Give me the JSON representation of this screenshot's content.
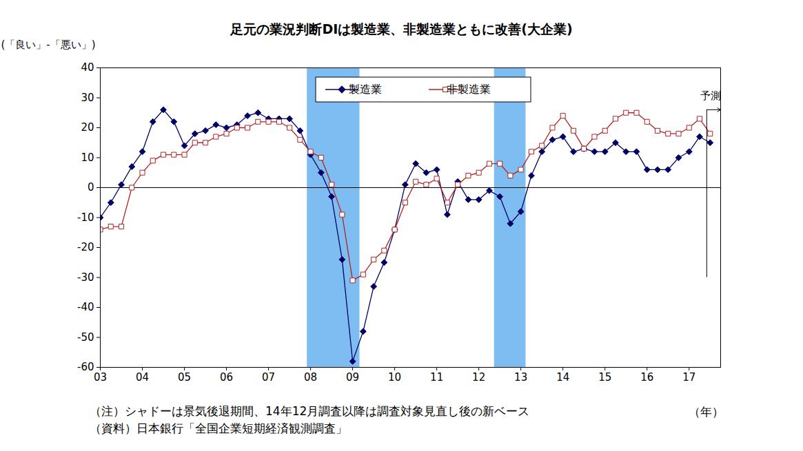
{
  "chart_data": {
    "type": "line",
    "title": "足元の業況判断DIは製造業、非製造業ともに改善(大企業)",
    "y_label": "(「良い」-「悪い」)",
    "x_label": "（年）",
    "notes": [
      "（注）シャドーは景気後退期間、14年12月調査以降は調査対象見直し後の新ベース",
      "（資料）日本銀行「全国企業短期経済観測調査」"
    ],
    "x": [
      2003,
      2003.25,
      2003.5,
      2003.75,
      2004,
      2004.25,
      2004.5,
      2004.75,
      2005,
      2005.25,
      2005.5,
      2005.75,
      2006,
      2006.25,
      2006.5,
      2006.75,
      2007,
      2007.25,
      2007.5,
      2007.75,
      2008,
      2008.25,
      2008.5,
      2008.75,
      2009,
      2009.25,
      2009.5,
      2009.75,
      2010,
      2010.25,
      2010.5,
      2010.75,
      2011,
      2011.25,
      2011.5,
      2011.75,
      2012,
      2012.25,
      2012.5,
      2012.75,
      2013,
      2013.25,
      2013.5,
      2013.75,
      2014,
      2014.25,
      2014.5,
      2014.75,
      2015,
      2015.25,
      2015.5,
      2015.75,
      2016,
      2016.25,
      2016.5,
      2016.75,
      2017,
      2017.25,
      2017.5
    ],
    "series": [
      {
        "name": "製造業",
        "color": "#000066",
        "marker": "diamond",
        "values": [
          -10,
          -5,
          1,
          7,
          12,
          22,
          26,
          22,
          14,
          18,
          19,
          21,
          20,
          21,
          24,
          25,
          23,
          23,
          23,
          19,
          11,
          5,
          -3,
          -24,
          -58,
          -48,
          -33,
          -25,
          -14,
          1,
          8,
          5,
          6,
          -9,
          2,
          -4,
          -4,
          -1,
          -3,
          -12,
          -8,
          4,
          12,
          16,
          17,
          12,
          13,
          12,
          12,
          15,
          12,
          12,
          6,
          6,
          6,
          10,
          12,
          17,
          15
        ]
      },
      {
        "name": "非製造業",
        "color": "#b22222",
        "marker": "square-open",
        "values": [
          -14,
          -13,
          -13,
          0,
          5,
          9,
          11,
          11,
          11,
          15,
          15,
          17,
          18,
          20,
          20,
          22,
          22,
          22,
          20,
          16,
          12,
          10,
          1,
          -9,
          -31,
          -29,
          -24,
          -21,
          -14,
          -5,
          2,
          1,
          3,
          -5,
          1,
          4,
          5,
          8,
          8,
          4,
          6,
          12,
          14,
          20,
          24,
          19,
          13,
          17,
          19,
          23,
          25,
          25,
          22,
          19,
          18,
          18,
          20,
          23,
          18
        ]
      }
    ],
    "xlim": [
      2003,
      2017.75
    ],
    "xticks": [
      {
        "value": 2003,
        "label": "03"
      },
      {
        "value": 2004,
        "label": "04"
      },
      {
        "value": 2005,
        "label": "05"
      },
      {
        "value": 2006,
        "label": "06"
      },
      {
        "value": 2007,
        "label": "07"
      },
      {
        "value": 2008,
        "label": "08"
      },
      {
        "value": 2009,
        "label": "09"
      },
      {
        "value": 2010,
        "label": "10"
      },
      {
        "value": 2011,
        "label": "11"
      },
      {
        "value": 2012,
        "label": "12"
      },
      {
        "value": 2013,
        "label": "13"
      },
      {
        "value": 2014,
        "label": "14"
      },
      {
        "value": 2015,
        "label": "15"
      },
      {
        "value": 2016,
        "label": "16"
      },
      {
        "value": 2017,
        "label": "17"
      }
    ],
    "ylim": [
      -60,
      40
    ],
    "yticks": [
      -60,
      -50,
      -40,
      -30,
      -20,
      -10,
      0,
      10,
      20,
      30,
      40
    ],
    "grid": false,
    "legend": "top",
    "shaded_periods": [
      {
        "start": 2007.92,
        "end": 2009.17
      },
      {
        "start": 2012.37,
        "end": 2013.12
      }
    ],
    "annotations": [
      {
        "text": "予測",
        "x": 2017.42,
        "y_from": -30,
        "y_to": 26
      }
    ]
  }
}
